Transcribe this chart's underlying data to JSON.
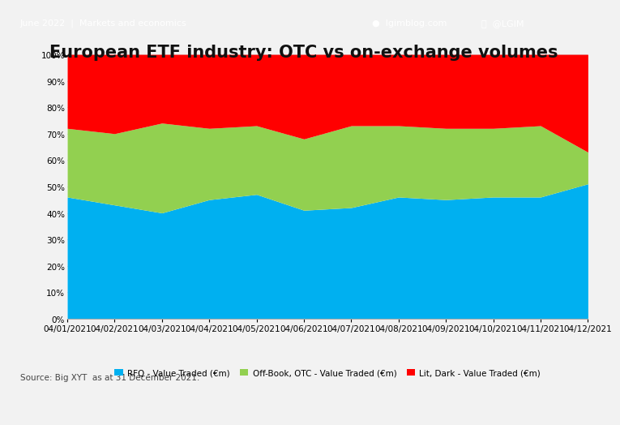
{
  "title": "European ETF industry: OTC vs on-exchange volumes",
  "header_text": "June 2022  |  Markets and economics",
  "header_right1": "lgimblog.com",
  "header_right2": "@LGIM",
  "source_text": "Source: Big XYT  as at 31 December 2021.",
  "header_color": "#1481d6",
  "header_text_color": "#ffffff",
  "background_color": "#f2f2f2",
  "chart_bg": "#ffffff",
  "x_labels": [
    "04/01/2021",
    "04/02/2021",
    "04/03/2021",
    "04/04/2021",
    "04/05/2021",
    "04/06/2021",
    "04/07/2021",
    "04/08/2021",
    "04/09/2021",
    "04/10/2021",
    "04/11/2021",
    "04/12/2021"
  ],
  "series_labels": [
    "RFQ - Value Traded (€m)",
    "Off-Book, OTC - Value Traded (€m)",
    "Lit, Dark - Value Traded (€m)"
  ],
  "colors": [
    "#00b0f0",
    "#92d050",
    "#ff0000"
  ],
  "rfq": [
    46,
    43,
    40,
    45,
    47,
    41,
    42,
    46,
    45,
    46,
    46,
    51
  ],
  "otc": [
    26,
    27,
    34,
    27,
    26,
    27,
    31,
    27,
    27,
    26,
    27,
    12
  ],
  "lit": [
    28,
    30,
    26,
    28,
    27,
    32,
    27,
    27,
    28,
    28,
    27,
    37
  ],
  "ylim": [
    0,
    100
  ],
  "ylabel_vals": [
    0,
    10,
    20,
    30,
    40,
    50,
    60,
    70,
    80,
    90,
    100
  ],
  "title_fontsize": 15,
  "axis_fontsize": 7.5,
  "legend_fontsize": 7.5,
  "header_fontsize": 8,
  "source_fontsize": 7.5
}
